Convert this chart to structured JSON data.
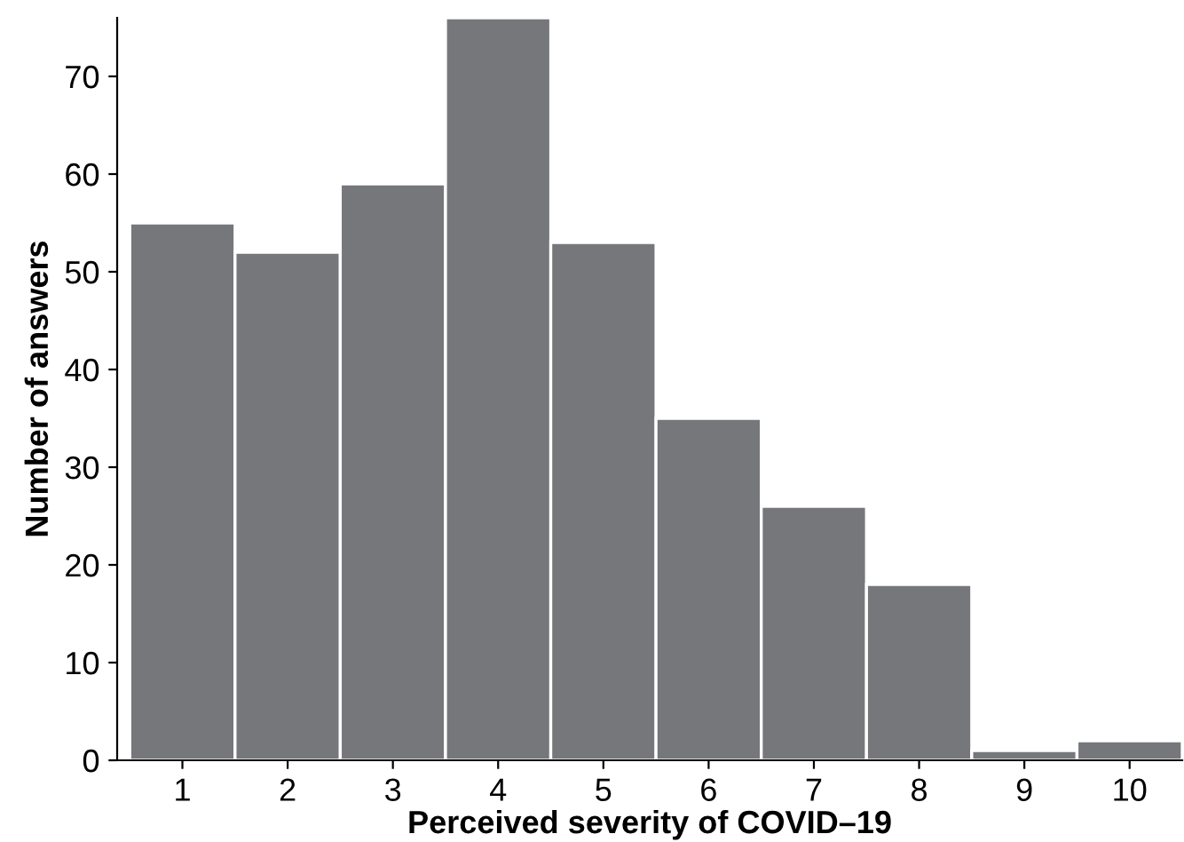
{
  "chart_data": {
    "type": "histogram",
    "xlabel": "Perceived severity of COVID–19",
    "ylabel": "Number of answers",
    "bins": [
      0.5,
      1.5,
      2.5,
      3.5,
      4.5,
      5.5,
      6.5,
      7.5,
      8.5,
      9.5,
      10.5
    ],
    "values": [
      55,
      52,
      59,
      76,
      53,
      35,
      26,
      18,
      1,
      2
    ],
    "color": "#76777b",
    "xlim": [
      0.38,
      10.5
    ],
    "xticks": [
      1,
      2,
      3,
      4,
      5,
      6,
      7,
      8,
      9,
      10
    ],
    "ylim": [
      0,
      76
    ],
    "yticks": [
      0,
      10,
      20,
      30,
      40,
      50,
      60,
      70
    ],
    "grid": false
  }
}
